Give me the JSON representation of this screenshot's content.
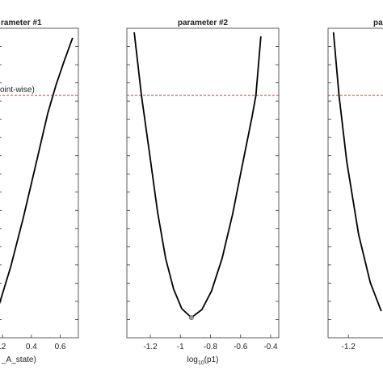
{
  "chart_data": [
    {
      "type": "line",
      "title": "rameter #1",
      "xlabel": "_A_state)",
      "threshold_label": "oint-wise)",
      "x": [
        0.171,
        0.257,
        0.343,
        0.429,
        0.514,
        0.571,
        0.629,
        0.686
      ],
      "series": [
        {
          "color": "#000000",
          "values": [
            0.99,
            2.3,
            3.86,
            5.56,
            7.26,
            8.17,
            8.96,
            9.69
          ]
        }
      ],
      "threshold": 7.83,
      "threshold_color": "#e03030",
      "xlim": [
        0.171,
        0.726
      ],
      "ylim": [
        0,
        10
      ],
      "xticks": [
        {
          "value": 0.2,
          "label": ".2"
        },
        0.4,
        0.6
      ]
    },
    {
      "type": "line",
      "title": "parameter #2",
      "xlabel": "log",
      "xlabel_sub": "10",
      "xlabel_rest": "(p1)",
      "x": [
        -1.307,
        -1.259,
        -1.205,
        -1.152,
        -1.098,
        -1.045,
        -0.991,
        -0.927,
        -0.857,
        -0.793,
        -0.723,
        -0.653,
        -0.589,
        -0.524,
        -0.498,
        -0.465
      ],
      "series": [
        {
          "color": "#000000",
          "values": [
            9.87,
            7.83,
            5.95,
            4.07,
            2.56,
            1.57,
            0.94,
            0.65,
            0.91,
            1.51,
            2.56,
            3.99,
            5.56,
            7.13,
            7.83,
            9.74
          ]
        }
      ],
      "optimum": {
        "x": -0.927,
        "y": 0.65
      },
      "threshold": 7.83,
      "threshold_color": "#e03030",
      "xlim": [
        -1.356,
        -0.346
      ],
      "ylim": [
        0,
        10
      ],
      "xticks": [
        -1.2,
        -1,
        -0.8,
        -0.6,
        -0.4
      ]
    },
    {
      "type": "line",
      "title": "para",
      "x": [
        -1.302,
        -1.264,
        -1.211,
        -1.13,
        -1.05,
        -0.975
      ],
      "series": [
        {
          "color": "#000000",
          "values": [
            9.87,
            7.83,
            5.69,
            3.34,
            1.78,
            0.86
          ]
        }
      ],
      "threshold": 7.83,
      "threshold_color": "#e03030",
      "xlim": [
        -1.339,
        -0.3
      ],
      "ylim": [
        0,
        10
      ],
      "xticks": [
        -1.2
      ]
    }
  ]
}
